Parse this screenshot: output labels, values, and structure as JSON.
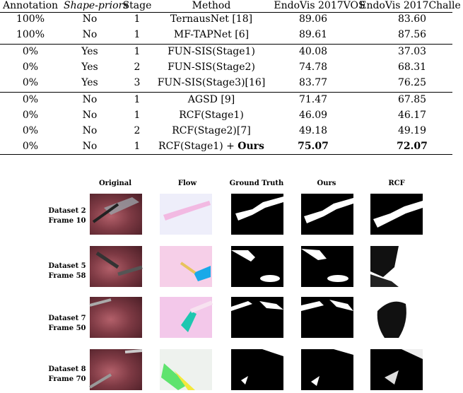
{
  "table": {
    "headers": {
      "annotation": "Annotation",
      "shape_priors": "Shape-priors",
      "stage": "Stage",
      "method": "Method",
      "endovis_vos": "EndoVis 2017VOS",
      "endovis_challenge": "EndoVis 2017Challe"
    },
    "rows": [
      {
        "annotation": "100%",
        "shape_priors": "No",
        "stage": "1",
        "method": "TernausNet [18]",
        "vos": "89.06",
        "challenge": "83.60"
      },
      {
        "annotation": "100%",
        "shape_priors": "No",
        "stage": "1",
        "method": "MF-TAPNet [6]",
        "vos": "89.61",
        "challenge": "87.56"
      },
      {
        "annotation": "0%",
        "shape_priors": "Yes",
        "stage": "1",
        "method": "FUN-SIS(Stage1)",
        "vos": "40.08",
        "challenge": "37.03"
      },
      {
        "annotation": "0%",
        "shape_priors": "Yes",
        "stage": "2",
        "method": "FUN-SIS(Stage2)",
        "vos": "74.78",
        "challenge": "68.31"
      },
      {
        "annotation": "0%",
        "shape_priors": "Yes",
        "stage": "3",
        "method": "FUN-SIS(Stage3)[16]",
        "vos": "83.77",
        "challenge": "76.25"
      },
      {
        "annotation": "0%",
        "shape_priors": "No",
        "stage": "1",
        "method": "AGSD [9]",
        "vos": "71.47",
        "challenge": "67.85"
      },
      {
        "annotation": "0%",
        "shape_priors": "No",
        "stage": "1",
        "method": "RCF(Stage1)",
        "vos": "46.09",
        "challenge": "46.17"
      },
      {
        "annotation": "0%",
        "shape_priors": "No",
        "stage": "2",
        "method": "RCF(Stage2)[7]",
        "vos": "49.18",
        "challenge": "49.19"
      },
      {
        "annotation": "0%",
        "shape_priors": "No",
        "stage": "1",
        "method_prefix": "RCF(Stage1) + ",
        "method_bold": "Ours",
        "vos": "75.07",
        "challenge": "72.07"
      }
    ]
  },
  "figure": {
    "columns": [
      "Original",
      "Flow",
      "Ground Truth",
      "Ours",
      "RCF"
    ],
    "rows": [
      {
        "dataset": "Dataset 2",
        "frame": "Frame 10"
      },
      {
        "dataset": "Dataset 5",
        "frame": "Frame 58"
      },
      {
        "dataset": "Dataset 7",
        "frame": "Frame 50"
      },
      {
        "dataset": "Dataset 8",
        "frame": "Frame 70"
      }
    ]
  }
}
